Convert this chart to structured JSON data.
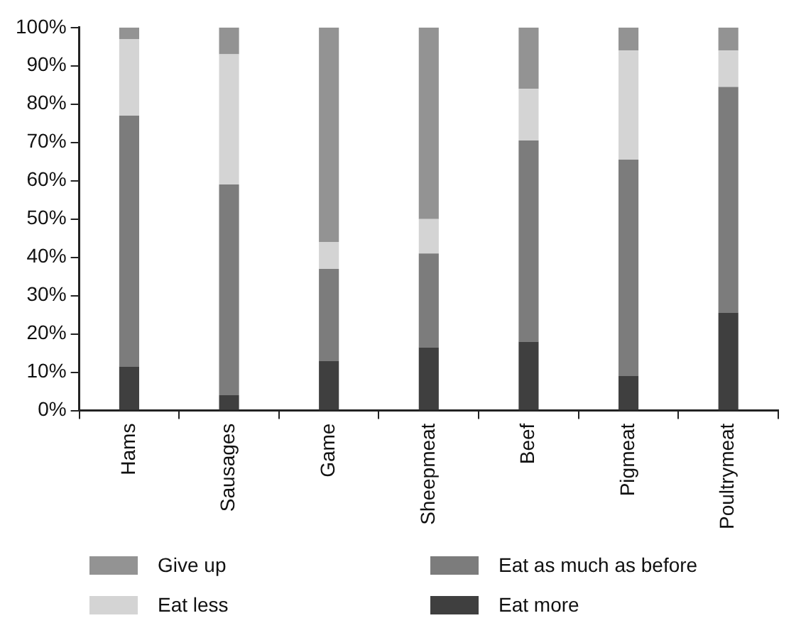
{
  "chart_data": {
    "type": "bar",
    "stacked": true,
    "categories": [
      "Hams",
      "Sausages",
      "Game",
      "Sheepmeat",
      "Beef",
      "Pigmeat",
      "Poultrymeat"
    ],
    "series": [
      {
        "name": "Eat more",
        "color": "#3f3f3f",
        "values": [
          11.5,
          4,
          13,
          16.5,
          18,
          9,
          25.5
        ]
      },
      {
        "name": "Eat as much as before",
        "color": "#7c7c7c",
        "values": [
          65.5,
          55,
          24,
          24.5,
          52.5,
          56.5,
          59
        ]
      },
      {
        "name": "Eat less",
        "color": "#d4d4d4",
        "values": [
          20,
          34,
          7,
          9,
          13.5,
          28.5,
          9.5
        ]
      },
      {
        "name": "Give up",
        "color": "#939393",
        "values": [
          3,
          7,
          56,
          50,
          16,
          6,
          6
        ]
      }
    ],
    "ylim": [
      0,
      100
    ],
    "yticks": [
      {
        "value": 0,
        "label": "0%"
      },
      {
        "value": 10,
        "label": "10%"
      },
      {
        "value": 20,
        "label": "20%"
      },
      {
        "value": 30,
        "label": "30%"
      },
      {
        "value": 40,
        "label": "40%"
      },
      {
        "value": 50,
        "label": "50%"
      },
      {
        "value": 60,
        "label": "60%"
      },
      {
        "value": 70,
        "label": "70%"
      },
      {
        "value": 80,
        "label": "80%"
      },
      {
        "value": 90,
        "label": "90%"
      },
      {
        "value": 100,
        "label": "100%"
      }
    ],
    "grid": false,
    "legend": "bottom"
  }
}
